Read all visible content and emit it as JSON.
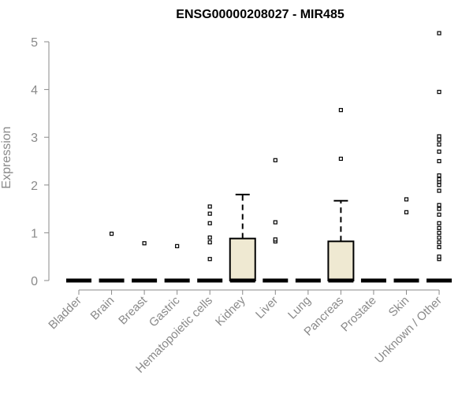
{
  "chart_data": {
    "type": "box",
    "title": "ENSG00000208027 - MIR485",
    "xlabel": "",
    "ylabel": "Expression",
    "ylim": [
      0,
      5.2
    ],
    "yticks": [
      "0",
      "1",
      "2",
      "3",
      "4",
      "5"
    ],
    "box_fill": "#efe9d2",
    "categories": [
      "Bladder",
      "Brain",
      "Breast",
      "Gastric",
      "Hematopoietic cells",
      "Kidney",
      "Liver",
      "Lung",
      "Pancreas",
      "Prostate",
      "Skin",
      "Unknown / Other"
    ],
    "boxes": [
      {
        "q1": 0,
        "median": 0,
        "q3": 0,
        "whisker_low": 0,
        "whisker_high": 0,
        "outliers": []
      },
      {
        "q1": 0,
        "median": 0,
        "q3": 0,
        "whisker_low": 0,
        "whisker_high": 0,
        "outliers": [
          0.98
        ]
      },
      {
        "q1": 0,
        "median": 0,
        "q3": 0,
        "whisker_low": 0,
        "whisker_high": 0,
        "outliers": [
          0.78
        ]
      },
      {
        "q1": 0,
        "median": 0,
        "q3": 0,
        "whisker_low": 0,
        "whisker_high": 0,
        "outliers": [
          0.72
        ]
      },
      {
        "q1": 0,
        "median": 0,
        "q3": 0,
        "whisker_low": 0,
        "whisker_high": 0,
        "outliers": [
          0.45,
          0.8,
          0.9,
          1.2,
          1.4,
          1.55
        ]
      },
      {
        "q1": 0,
        "median": 0,
        "q3": 0.88,
        "whisker_low": 0,
        "whisker_high": 1.8,
        "outliers": []
      },
      {
        "q1": 0,
        "median": 0,
        "q3": 0,
        "whisker_low": 0,
        "whisker_high": 0,
        "outliers": [
          0.82,
          0.86,
          1.22,
          2.52
        ]
      },
      {
        "q1": 0,
        "median": 0,
        "q3": 0,
        "whisker_low": 0,
        "whisker_high": 0,
        "outliers": []
      },
      {
        "q1": 0,
        "median": 0,
        "q3": 0.82,
        "whisker_low": 0,
        "whisker_high": 1.67,
        "outliers": [
          2.55,
          3.57
        ]
      },
      {
        "q1": 0,
        "median": 0,
        "q3": 0,
        "whisker_low": 0,
        "whisker_high": 0,
        "outliers": []
      },
      {
        "q1": 0,
        "median": 0,
        "q3": 0,
        "whisker_low": 0,
        "whisker_high": 0,
        "outliers": [
          1.43,
          1.7
        ]
      },
      {
        "q1": 0,
        "median": 0,
        "q3": 0,
        "whisker_low": 0,
        "whisker_high": 0,
        "outliers": [
          0.45,
          0.5,
          0.7,
          0.8,
          0.9,
          1.0,
          1.1,
          1.2,
          1.38,
          1.5,
          1.58,
          1.88,
          2.0,
          2.07,
          2.12,
          2.2,
          2.5,
          2.7,
          2.85,
          2.95,
          3.02,
          3.95,
          5.18
        ]
      }
    ]
  }
}
